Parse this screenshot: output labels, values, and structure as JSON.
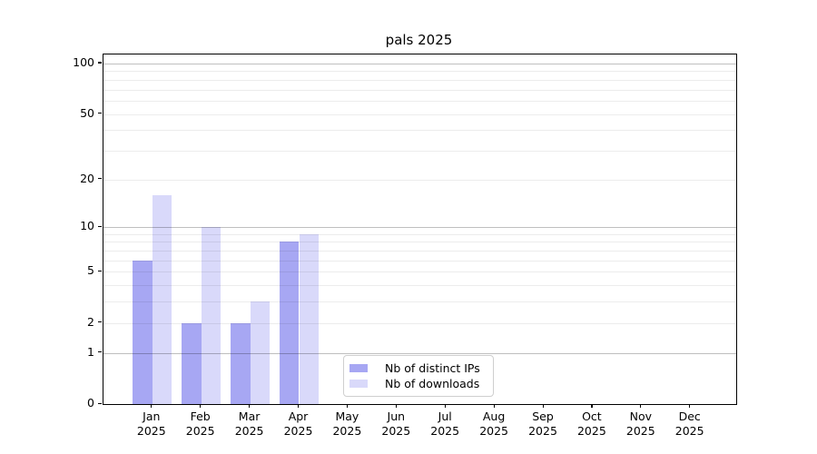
{
  "chart": {
    "title": "pals 2025",
    "background_color": "#ffffff",
    "axis_color": "#000000"
  },
  "chart_data": {
    "type": "bar",
    "title": "pals 2025",
    "categories": [
      "Jan 2025",
      "Feb 2025",
      "Mar 2025",
      "Apr 2025",
      "May 2025",
      "Jun 2025",
      "Jul 2025",
      "Aug 2025",
      "Sep 2025",
      "Oct 2025",
      "Nov 2025",
      "Dec 2025"
    ],
    "x_tick_labels": [
      {
        "month": "Jan",
        "year": "2025"
      },
      {
        "month": "Feb",
        "year": "2025"
      },
      {
        "month": "Mar",
        "year": "2025"
      },
      {
        "month": "Apr",
        "year": "2025"
      },
      {
        "month": "May",
        "year": "2025"
      },
      {
        "month": "Jun",
        "year": "2025"
      },
      {
        "month": "Jul",
        "year": "2025"
      },
      {
        "month": "Aug",
        "year": "2025"
      },
      {
        "month": "Sep",
        "year": "2025"
      },
      {
        "month": "Oct",
        "year": "2025"
      },
      {
        "month": "Nov",
        "year": "2025"
      },
      {
        "month": "Dec",
        "year": "2025"
      }
    ],
    "series": [
      {
        "name": "Nb of distinct IPs",
        "color": "#a7a7f3",
        "values": [
          6,
          2,
          2,
          8,
          0,
          0,
          0,
          0,
          0,
          0,
          0,
          0
        ]
      },
      {
        "name": "Nb of downloads",
        "color": "#d9d9fa",
        "values": [
          16,
          10,
          3,
          9,
          0,
          0,
          0,
          0,
          0,
          0,
          0,
          0
        ]
      }
    ],
    "xlabel": "",
    "ylabel": "",
    "y_scale": "log1p",
    "y_ticks": [
      0,
      1,
      2,
      5,
      10,
      20,
      50,
      100
    ],
    "y_major_gridlines": [
      1,
      10,
      100
    ],
    "y_minor_gridlines": [
      2,
      3,
      4,
      5,
      6,
      7,
      8,
      9,
      20,
      30,
      40,
      50,
      60,
      70,
      80,
      90
    ],
    "ylim": [
      0,
      112
    ],
    "grid": true,
    "legend_position": "bottom-center",
    "legend_labels": [
      "Nb of distinct IPs",
      "Nb of downloads"
    ]
  },
  "legend": {
    "items": [
      {
        "label": "Nb of distinct IPs"
      },
      {
        "label": "Nb of downloads"
      }
    ]
  }
}
